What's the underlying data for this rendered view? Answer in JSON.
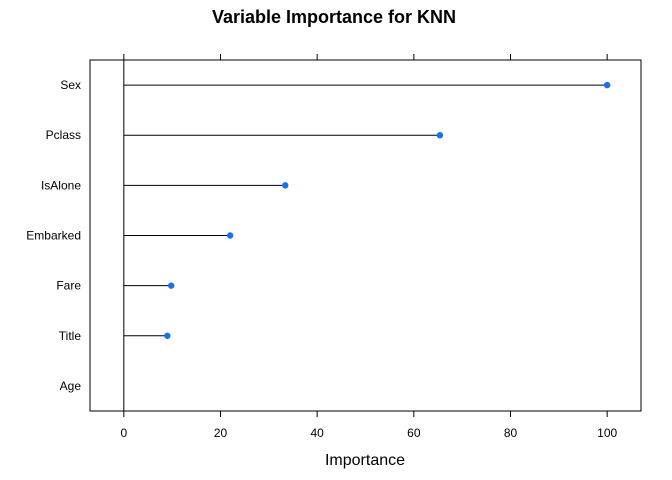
{
  "chart_data": {
    "type": "dotplot",
    "title": "Variable Importance for KNN",
    "xlabel": "Importance",
    "ylabel": "",
    "categories": [
      "Sex",
      "Pclass",
      "IsAlone",
      "Embarked",
      "Fare",
      "Title",
      "Age"
    ],
    "values": [
      100,
      65.4,
      33.4,
      22.0,
      9.8,
      9.0,
      0
    ],
    "xlim": [
      -7,
      107
    ],
    "xticks": [
      0,
      20,
      40,
      60,
      80,
      100
    ],
    "grid": false,
    "point_color": "#1a6ef2",
    "line_color": "#000000"
  }
}
